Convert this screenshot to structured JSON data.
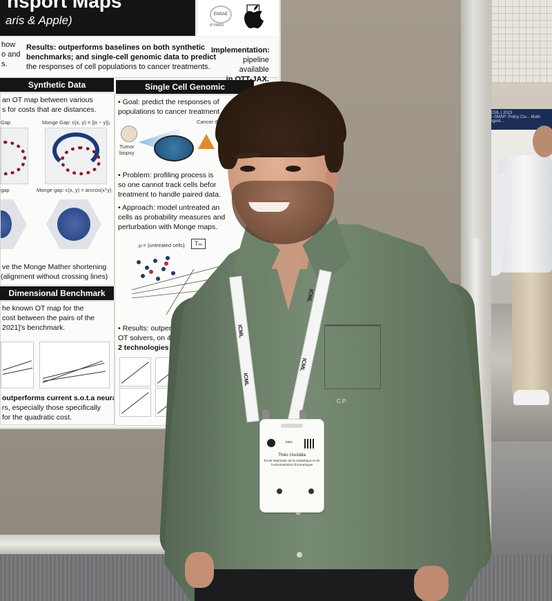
{
  "poster": {
    "title": "nsport Maps",
    "affiliation": "aris & Apple)",
    "logo_ensae": "ENSAE",
    "logo_ensae_sub": "IP PARIS",
    "intro": {
      "left_lines": [
        "how",
        "o and",
        "s."
      ],
      "results_lines": [
        "Results: outperforms baselines on both synthetic",
        "benchmarks; and single-cell genomic data to predict",
        "the responses of cell populations to cancer treatments."
      ],
      "implementation_lines": [
        "Implementation:",
        "pipeline available",
        "in OTT-JAX."
      ]
    },
    "synthetic": {
      "header": "Synthetic Data",
      "lines": [
        "an OT map between various",
        "s for costs that are distances."
      ],
      "gap1_label": "Monge Gap: c(x, y) = ||x − y||₂",
      "gap2_label": "Monge gap: c(x, y) = arccos(xᵀy)",
      "gap_left1": "Gap",
      "gap_left2": "gap",
      "footer_lines": [
        "ve the Monge Mather shortening",
        "(alignment without crossing lines)"
      ]
    },
    "single_cell": {
      "header": "Single Cell Genomic",
      "goal_lines": [
        "• Goal: predict the responses of",
        "  populations to cancer treatment"
      ],
      "drug_label": "Cancer drug",
      "tumor_label": "Tumor biopsy",
      "problem_lines": [
        "• Problem: profiling process is",
        "  so one cannot track cells befor",
        "  treatment to handle paired data."
      ],
      "approach_lines": [
        "• Approach: model untreated an",
        "  cells as probability measures and",
        "  perturbation with Monge maps."
      ],
      "mu_label": "μ = {untreated cells}",
      "t_label": "Tₘ",
      "results_lines": [
        "• Results: outper",
        "  OT solvers, on 4",
        "  2 technologies"
      ]
    },
    "benchmark": {
      "header": "Dimensional Benchmark",
      "lines": [
        "he known OT map for the",
        "cost between the pairs of the",
        "2021]'s benchmark."
      ],
      "footer_lines": [
        "outperforms current s.o.t.a neural",
        "rs, especially those specifically",
        "for the quadratic cost."
      ]
    }
  },
  "badge": {
    "org_short": "hahn",
    "name": "Théo Uscidda",
    "org": "École Nationale de la Statistique et de l'Administration Économique"
  },
  "lanyard_text": "ICML",
  "shirt_logo": "C.P.",
  "background_banner": "ICML | 2023",
  "background_banner_sub": "K-SMAP: Policy Clu... Multi-Agent..."
}
